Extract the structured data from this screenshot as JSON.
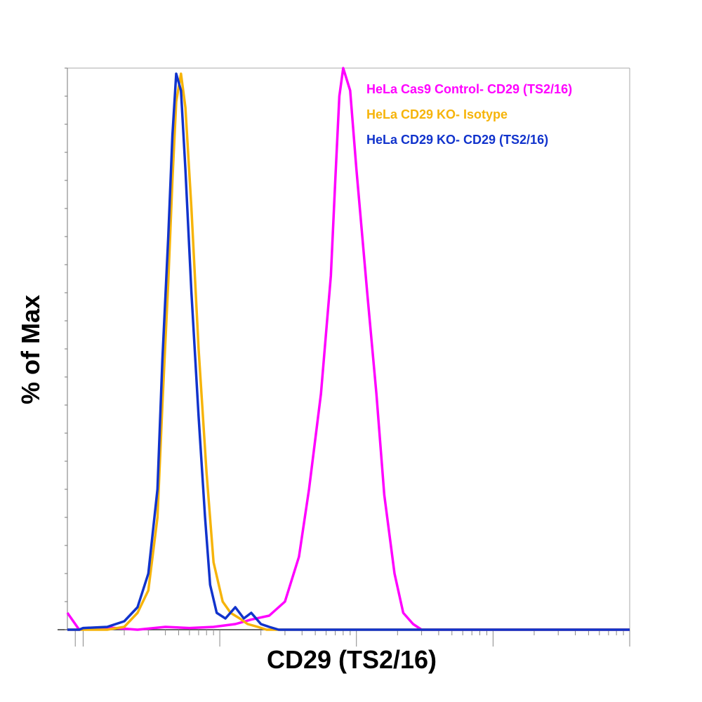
{
  "chart_data": {
    "type": "line",
    "title": "",
    "xlabel": "CD29 (TS2/16)",
    "ylabel": "% of Max",
    "x_scale": "log",
    "xlim": [
      -100,
      1000000
    ],
    "ylim": [
      0,
      100
    ],
    "grid": false,
    "legend_position": "top-right",
    "series": [
      {
        "name": "HeLa Cas9 Control- CD29 (TS2/16)",
        "color": "#ff00ff",
        "x": [
          -100,
          50,
          150,
          250,
          400,
          600,
          900,
          1300,
          1700,
          2300,
          3000,
          3800,
          4500,
          5500,
          6500,
          7000,
          7500,
          8000,
          9000,
          10000,
          12000,
          14000,
          16000,
          19000,
          22000,
          26000,
          30000,
          1000000
        ],
        "y": [
          3,
          0,
          0.4,
          0,
          0.5,
          0.3,
          0.5,
          1.0,
          1.8,
          2.5,
          5,
          13,
          25,
          42,
          63,
          80,
          95,
          100,
          96,
          82,
          60,
          42,
          24,
          10,
          3,
          1,
          0,
          0
        ]
      },
      {
        "name": "HeLa CD29 KO- Isotype",
        "color": "#f6b40a",
        "x": [
          -100,
          50,
          150,
          200,
          250,
          300,
          350,
          380,
          420,
          450,
          480,
          520,
          560,
          620,
          700,
          800,
          900,
          1050,
          1200,
          1400,
          1600,
          1900,
          2200,
          1000000
        ],
        "y": [
          0,
          0,
          0,
          0.5,
          3,
          7,
          20,
          40,
          62,
          80,
          94,
          99,
          93,
          75,
          50,
          28,
          12,
          5,
          3,
          2,
          1,
          0.5,
          0,
          0
        ]
      },
      {
        "name": "HeLa CD29 KO- CD29 (TS2/16)",
        "color": "#1133cc",
        "x": [
          -100,
          50,
          100,
          150,
          200,
          250,
          300,
          350,
          380,
          420,
          450,
          480,
          520,
          560,
          620,
          700,
          780,
          850,
          950,
          1100,
          1300,
          1500,
          1700,
          2000,
          2300,
          2700,
          1000000
        ],
        "y": [
          0,
          0,
          0.3,
          0.5,
          1.5,
          4,
          10,
          25,
          48,
          70,
          88,
          99,
          96,
          82,
          60,
          38,
          20,
          8,
          3,
          2,
          4,
          2,
          3,
          1,
          0.5,
          0,
          0
        ]
      }
    ]
  }
}
